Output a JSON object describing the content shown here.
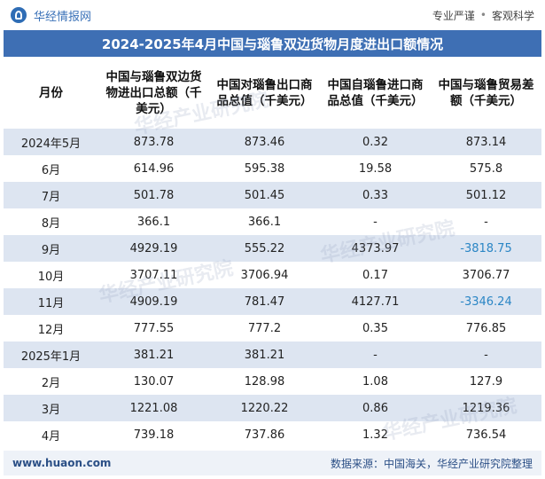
{
  "header": {
    "brand": "华经情报网",
    "slogan_left": "专业严谨",
    "slogan_sep": "•",
    "slogan_right": "客观科学"
  },
  "title": "2024-2025年4月中国与瑙鲁双边货物月度进出口额情况",
  "table": {
    "columns": [
      "月份",
      "中国与瑙鲁双边货物进出口总额（千美元）",
      "中国对瑙鲁出口商品总值（千美元）",
      "中国自瑙鲁进口商品总值（千美元）",
      "中国与瑙鲁贸易差额（千美元）"
    ],
    "rows": [
      {
        "month": "2024年5月",
        "total": "873.78",
        "export": "873.46",
        "import": "0.32",
        "balance": "873.14"
      },
      {
        "month": "6月",
        "total": "614.96",
        "export": "595.38",
        "import": "19.58",
        "balance": "575.8"
      },
      {
        "month": "7月",
        "total": "501.78",
        "export": "501.45",
        "import": "0.33",
        "balance": "501.12"
      },
      {
        "month": "8月",
        "total": "366.1",
        "export": "366.1",
        "import": "-",
        "balance": "-"
      },
      {
        "month": "9月",
        "total": "4929.19",
        "export": "555.22",
        "import": "4373.97",
        "balance": "-3818.75"
      },
      {
        "month": "10月",
        "total": "3707.11",
        "export": "3706.94",
        "import": "0.17",
        "balance": "3706.77"
      },
      {
        "month": "11月",
        "total": "4909.19",
        "export": "781.47",
        "import": "4127.71",
        "balance": "-3346.24"
      },
      {
        "month": "12月",
        "total": "777.55",
        "export": "777.2",
        "import": "0.35",
        "balance": "776.85"
      },
      {
        "month": "2025年1月",
        "total": "381.21",
        "export": "381.21",
        "import": "-",
        "balance": "-"
      },
      {
        "month": "2月",
        "total": "130.07",
        "export": "128.98",
        "import": "1.08",
        "balance": "127.9"
      },
      {
        "month": "3月",
        "total": "1221.08",
        "export": "1220.22",
        "import": "0.86",
        "balance": "1219.36"
      },
      {
        "month": "4月",
        "total": "739.18",
        "export": "737.86",
        "import": "1.32",
        "balance": "736.54"
      }
    ]
  },
  "watermark": "华经产业研究院",
  "footer": {
    "url": "www.huaon.com",
    "source": "数据来源：中国海关，华经产业研究院整理"
  },
  "colors": {
    "title_bg": "#3e6fb4",
    "row_alt": "#dde5f1",
    "negative": "#2b86c5"
  }
}
